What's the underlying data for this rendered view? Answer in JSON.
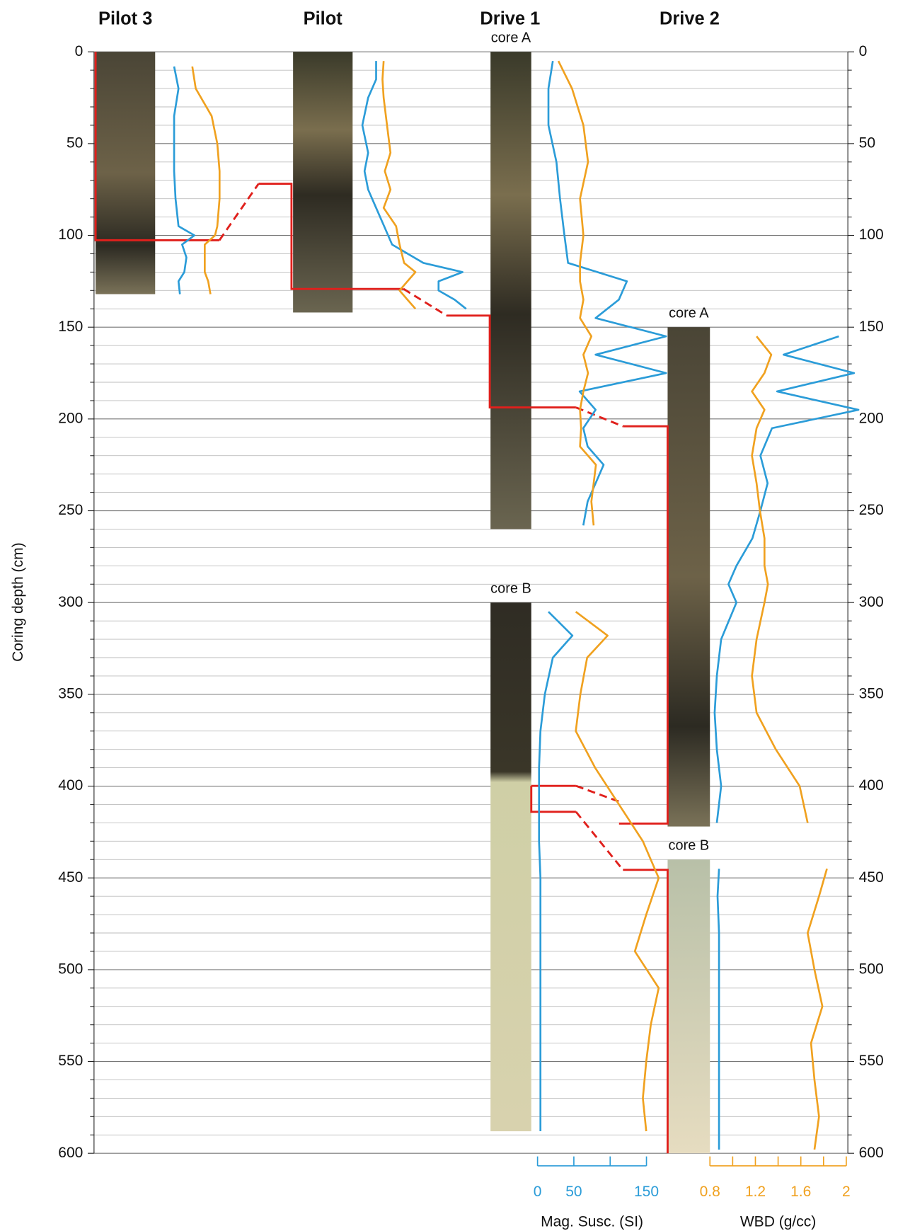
{
  "chart_data": {
    "type": "core-log",
    "ylabel": "Coring depth (cm)",
    "ylim": [
      0,
      600
    ],
    "yticks": [
      0,
      50,
      100,
      150,
      200,
      250,
      300,
      350,
      400,
      450,
      500,
      550,
      600
    ],
    "minor_yticks": [
      10,
      20,
      30,
      40,
      60,
      70,
      80,
      90,
      110,
      120,
      130,
      140,
      160,
      170,
      180,
      190,
      210,
      220,
      230,
      240,
      260,
      270,
      280,
      290,
      310,
      320,
      330,
      340,
      360,
      370,
      380,
      390,
      410,
      420,
      430,
      440,
      460,
      470,
      480,
      490,
      510,
      520,
      530,
      540,
      560,
      570,
      580,
      590
    ],
    "grid": true,
    "scales": [
      {
        "name": "Mag. Susc. (SI)",
        "color": "#2b9cd8",
        "xlim": [
          0,
          150
        ],
        "xticks": [
          0,
          50,
          {
            "value": 100,
            "label": null
          },
          150
        ]
      },
      {
        "name": "WBD (g/cc)",
        "color": "#f0a11f",
        "xlim": [
          0.8,
          2.0
        ],
        "xticks": [
          0.8,
          {
            "value": 1.0,
            "label": null
          },
          1.2,
          {
            "value": 1.4,
            "label": null
          },
          1.6,
          {
            "value": 1.8,
            "label": null
          },
          2.0
        ]
      }
    ],
    "columns": [
      {
        "title": "Pilot 3",
        "cores": [
          {
            "top": 0,
            "bottom": 132,
            "depth": [
              8,
              20,
              35,
              50,
              65,
              80,
              95,
              100,
              105,
              112,
              120,
              125,
              132
            ],
            "mag": [
              11,
              17,
              11,
              11,
              11,
              13,
              17,
              39,
              22,
              28,
              25,
              17,
              19
            ],
            "wbd": [
              1.32,
              1.35,
              1.49,
              1.54,
              1.56,
              1.56,
              1.54,
              1.52,
              1.43,
              1.43,
              1.43,
              1.46,
              1.48
            ]
          }
        ]
      },
      {
        "title": "Pilot",
        "cores": [
          {
            "top": 0,
            "bottom": 142,
            "depth": [
              5,
              15,
              25,
              40,
              55,
              65,
              75,
              85,
              95,
              105,
              115,
              120,
              125,
              130,
              135,
              140
            ],
            "mag": [
              27,
              27,
              16,
              8,
              16,
              11,
              16,
              27,
              38,
              49,
              92,
              146,
              113,
              113,
              135,
              151
            ],
            "wbd": [
              1.28,
              1.27,
              1.28,
              1.31,
              1.34,
              1.29,
              1.34,
              1.28,
              1.39,
              1.42,
              1.46,
              1.56,
              1.49,
              1.42,
              1.49,
              1.56
            ]
          }
        ]
      },
      {
        "title": "Drive 1",
        "cores": [
          {
            "label": "core A",
            "top": 0,
            "bottom": 260,
            "depth": [
              5,
              20,
              40,
              60,
              80,
              100,
              115,
              125,
              135,
              145,
              155,
              165,
              175,
              185,
              195,
              205,
              215,
              225,
              235,
              245,
              258
            ],
            "mag": [
              21,
              15,
              15,
              26,
              31,
              37,
              42,
              123,
              112,
              80,
              177,
              80,
              177,
              58,
              80,
              63,
              69,
              91,
              80,
              69,
              63
            ],
            "wbd": [
              1.37,
              1.49,
              1.59,
              1.63,
              1.56,
              1.59,
              1.56,
              1.56,
              1.59,
              1.56,
              1.66,
              1.59,
              1.63,
              1.59,
              1.56,
              1.57,
              1.56,
              1.7,
              1.68,
              1.66,
              1.68
            ]
          },
          {
            "label": "core B",
            "top": 300,
            "bottom": 588,
            "depth": [
              305,
              318,
              330,
              350,
              370,
              390,
              410,
              430,
              450,
              470,
              490,
              510,
              530,
              550,
              570,
              588
            ],
            "mag": [
              15,
              48,
              21,
              10,
              4,
              2,
              2,
              2,
              4,
              4,
              4,
              4,
              4,
              4,
              4,
              4
            ],
            "wbd": [
              1.04,
              1.32,
              1.14,
              1.08,
              1.04,
              1.21,
              1.42,
              1.63,
              1.77,
              1.66,
              1.56,
              1.77,
              1.7,
              1.66,
              1.63,
              1.66
            ]
          }
        ]
      },
      {
        "title": "Drive 2",
        "cores": [
          {
            "label": "core A",
            "top": 150,
            "bottom": 422,
            "depth": [
              155,
              165,
              175,
              185,
              195,
              205,
              220,
              235,
              250,
              265,
              280,
              290,
              300,
              320,
              340,
              360,
              380,
              400,
              420
            ],
            "mag": [
              171,
              95,
              192,
              86,
              198,
              79,
              63,
              73,
              63,
              52,
              30,
              19,
              30,
              9,
              3,
              0,
              3,
              9,
              3
            ],
            "wbd": [
              1.21,
              1.34,
              1.28,
              1.17,
              1.28,
              1.21,
              1.17,
              1.21,
              1.24,
              1.28,
              1.28,
              1.31,
              1.28,
              1.21,
              1.17,
              1.21,
              1.38,
              1.59,
              1.66
            ]
          },
          {
            "label": "core B",
            "top": 440,
            "bottom": 600,
            "depth": [
              445,
              460,
              480,
              500,
              520,
              540,
              560,
              580,
              598
            ],
            "mag": [
              6,
              4,
              6,
              6,
              6,
              6,
              6,
              6,
              6
            ],
            "wbd": [
              1.83,
              1.76,
              1.66,
              1.72,
              1.79,
              1.69,
              1.72,
              1.76,
              1.72
            ]
          }
        ]
      }
    ]
  }
}
